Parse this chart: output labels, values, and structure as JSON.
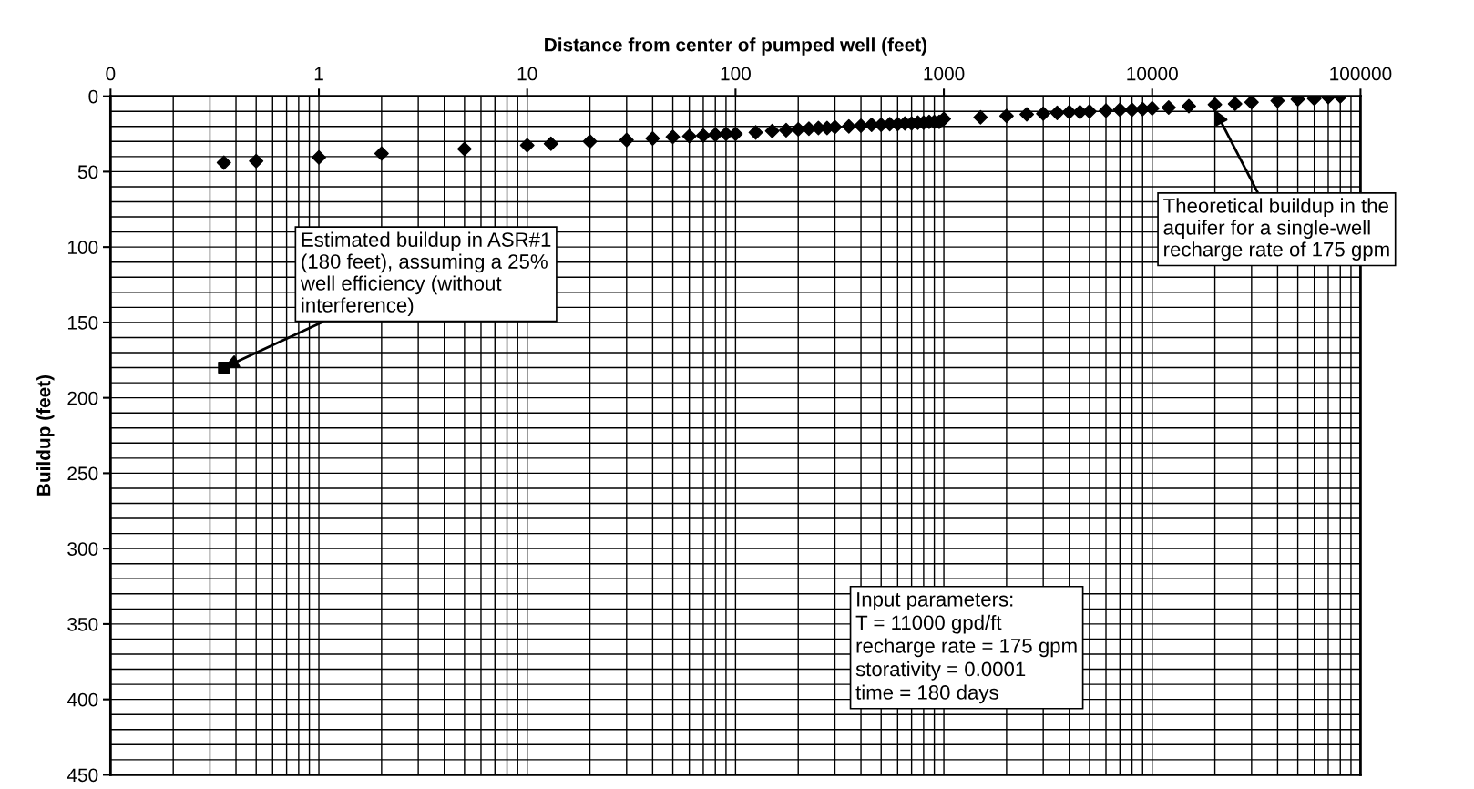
{
  "chart_data": {
    "type": "scatter",
    "xlabel": "Distance from center of pumped well (feet)",
    "ylabel": "Buildup (feet)",
    "log": "x",
    "grid": true,
    "legend": false,
    "xlim": [
      0.1,
      100000
    ],
    "xticks": [
      {
        "value": 0.1,
        "label": "0"
      },
      1,
      10,
      100,
      1000,
      10000,
      100000
    ],
    "ylim": [
      450,
      0
    ],
    "yticks": [
      0,
      50,
      100,
      150,
      200,
      250,
      300,
      350,
      400,
      450
    ],
    "series": [
      {
        "color": "#000000",
        "marker": "diamond",
        "x": [
          0.35,
          0.5,
          1,
          2,
          5,
          10,
          13,
          20,
          30,
          40,
          50,
          60,
          70,
          80,
          90,
          100,
          125,
          150,
          175,
          200,
          225,
          250,
          275,
          300,
          350,
          400,
          450,
          500,
          550,
          600,
          650,
          700,
          750,
          800,
          850,
          900,
          950,
          1000,
          1500,
          2000,
          2500,
          3000,
          3500,
          4000,
          4500,
          5000,
          6000,
          7000,
          8000,
          9000,
          10000,
          12000,
          15000,
          20000,
          25000,
          30000,
          40000,
          50000,
          60000,
          70000,
          80000
        ],
        "values": [
          44,
          43,
          40.5,
          38,
          35,
          32.5,
          31.5,
          30,
          29,
          28,
          27,
          26.5,
          26,
          25.5,
          25,
          25,
          24,
          23,
          22.5,
          22,
          21.5,
          21,
          21,
          20.5,
          20,
          19.5,
          19,
          19,
          18.5,
          18.5,
          18,
          18,
          17.5,
          17.5,
          17,
          17,
          17,
          15,
          14,
          13,
          12,
          11.5,
          11,
          10.5,
          10.5,
          10,
          9.5,
          9,
          9,
          8.5,
          8,
          7.5,
          6.5,
          5.5,
          5,
          4,
          3,
          2,
          1.5,
          0.5,
          0
        ]
      },
      {
        "color": "#000000",
        "marker": "square",
        "x": [
          0.35
        ],
        "values": [
          180
        ]
      }
    ],
    "annotations": [
      {
        "text": "Estimated buildup in ASR#1\n(180 feet), assuming a 25%\nwell efficiency (without\ninterference)",
        "x": 0.35,
        "y": 180
      },
      {
        "text": "Theoretical buildup in the\naquifer for a single-well\nrecharge rate of 175 gpm",
        "x": 20000,
        "y": 9
      },
      "Input parameters:\nT = 11000 gpd/ft\nrecharge rate = 175 gpm\nstorativity = 0.0001\ntime = 180 days"
    ]
  }
}
